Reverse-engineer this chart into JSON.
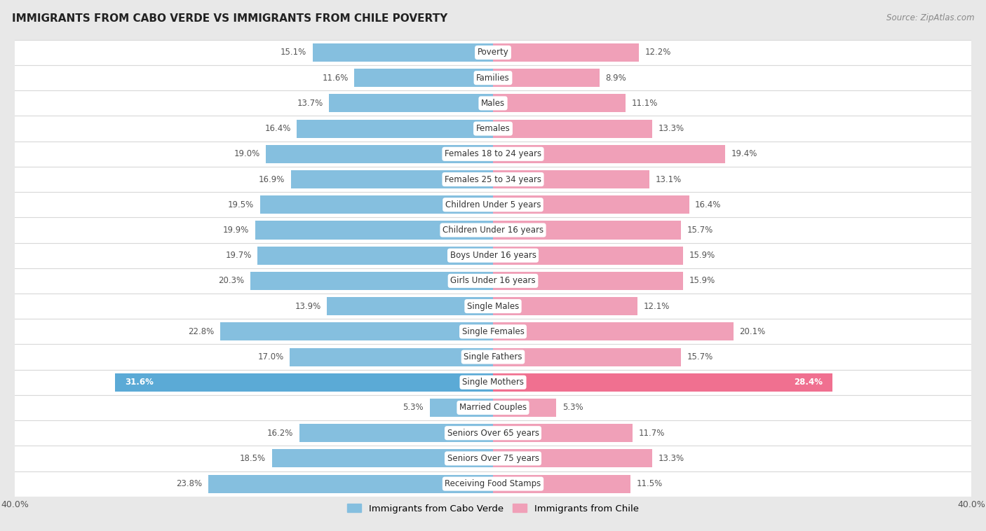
{
  "title": "IMMIGRANTS FROM CABO VERDE VS IMMIGRANTS FROM CHILE POVERTY",
  "source": "Source: ZipAtlas.com",
  "categories": [
    "Poverty",
    "Families",
    "Males",
    "Females",
    "Females 18 to 24 years",
    "Females 25 to 34 years",
    "Children Under 5 years",
    "Children Under 16 years",
    "Boys Under 16 years",
    "Girls Under 16 years",
    "Single Males",
    "Single Females",
    "Single Fathers",
    "Single Mothers",
    "Married Couples",
    "Seniors Over 65 years",
    "Seniors Over 75 years",
    "Receiving Food Stamps"
  ],
  "cabo_verde": [
    15.1,
    11.6,
    13.7,
    16.4,
    19.0,
    16.9,
    19.5,
    19.9,
    19.7,
    20.3,
    13.9,
    22.8,
    17.0,
    31.6,
    5.3,
    16.2,
    18.5,
    23.8
  ],
  "chile": [
    12.2,
    8.9,
    11.1,
    13.3,
    19.4,
    13.1,
    16.4,
    15.7,
    15.9,
    15.9,
    12.1,
    20.1,
    15.7,
    28.4,
    5.3,
    11.7,
    13.3,
    11.5
  ],
  "cabo_verde_color": "#85BFDF",
  "chile_color": "#F0A0B8",
  "cabo_verde_highlight_color": "#5BAAD6",
  "chile_highlight_color": "#F07090",
  "row_bg_color": "#ffffff",
  "row_sep_color": "#d8d8d8",
  "outer_bg_color": "#e8e8e8",
  "xlim": 40.0,
  "bar_height": 0.72,
  "label_bg_color": "#ffffff",
  "legend_label_cabo": "Immigrants from Cabo Verde",
  "legend_label_chile": "Immigrants from Chile",
  "value_color_normal": "#555555",
  "value_color_highlight": "#ffffff"
}
